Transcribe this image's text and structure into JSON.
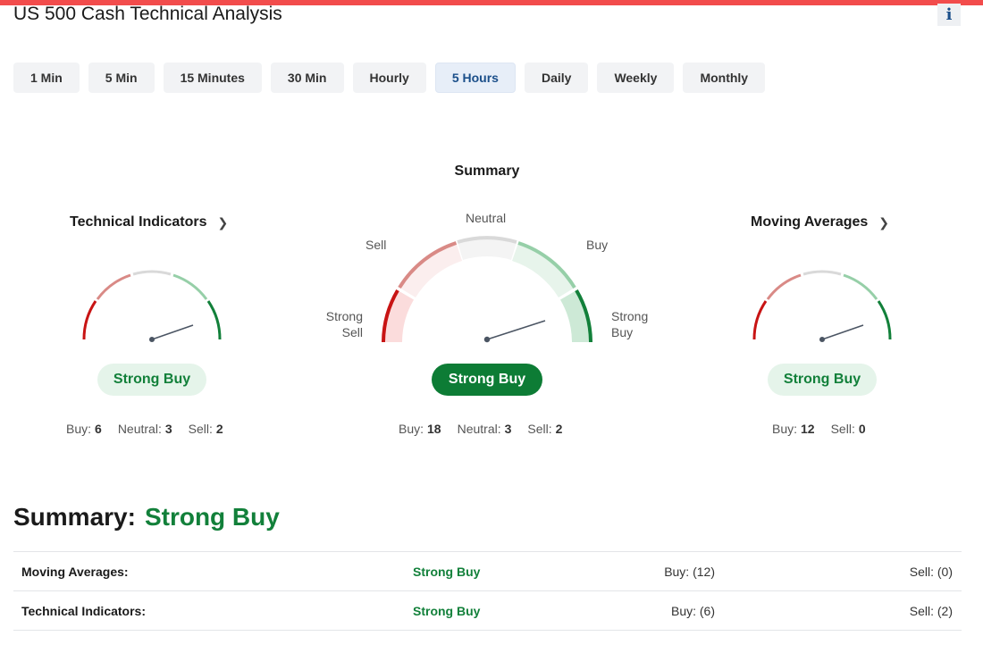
{
  "page": {
    "title": "US 500 Cash Technical Analysis",
    "info_icon": "info-icon",
    "info_glyph": "i"
  },
  "colors": {
    "top_bar": "#f24c4c",
    "strong_buy": "#12803a",
    "strong_buy_dark": "#0d7c35",
    "strong_sell": "#c81414",
    "sell": "#d98a86",
    "neutral": "#d9d9d9",
    "buy": "#96cfa8",
    "active_tab": "#1b4f8a"
  },
  "timeframes": {
    "items": [
      "1 Min",
      "5 Min",
      "15 Minutes",
      "30 Min",
      "Hourly",
      "5 Hours",
      "Daily",
      "Weekly",
      "Monthly"
    ],
    "active_index": 5
  },
  "summary_gauge": {
    "title": "Summary",
    "labels": {
      "strong_sell": [
        "Strong",
        "Sell"
      ],
      "sell": "Sell",
      "neutral": "Neutral",
      "buy": "Buy",
      "strong_buy": [
        "Strong",
        "Buy"
      ]
    },
    "verdict": "Strong Buy",
    "counts": [
      {
        "label": "Buy:",
        "value": "18"
      },
      {
        "label": "Neutral:",
        "value": "3"
      },
      {
        "label": "Sell:",
        "value": "2"
      }
    ]
  },
  "technical_indicators": {
    "title": "Technical Indicators",
    "chevron_icon": "chevron-right-icon",
    "verdict": "Strong Buy",
    "counts": [
      {
        "label": "Buy:",
        "value": "6"
      },
      {
        "label": "Neutral:",
        "value": "3"
      },
      {
        "label": "Sell:",
        "value": "2"
      }
    ]
  },
  "moving_averages": {
    "title": "Moving Averages",
    "chevron_icon": "chevron-right-icon",
    "verdict": "Strong Buy",
    "counts": [
      {
        "label": "Buy:",
        "value": "12"
      },
      {
        "label": "Sell:",
        "value": "0"
      }
    ]
  },
  "overall": {
    "label": "Summary:",
    "value": "Strong Buy"
  },
  "table": {
    "rows": [
      {
        "name": "Moving Averages:",
        "verdict": "Strong Buy",
        "buy": "Buy: (12)",
        "sell": "Sell: (0)"
      },
      {
        "name": "Technical Indicators:",
        "verdict": "Strong Buy",
        "buy": "Buy: (6)",
        "sell": "Sell: (2)"
      }
    ]
  }
}
